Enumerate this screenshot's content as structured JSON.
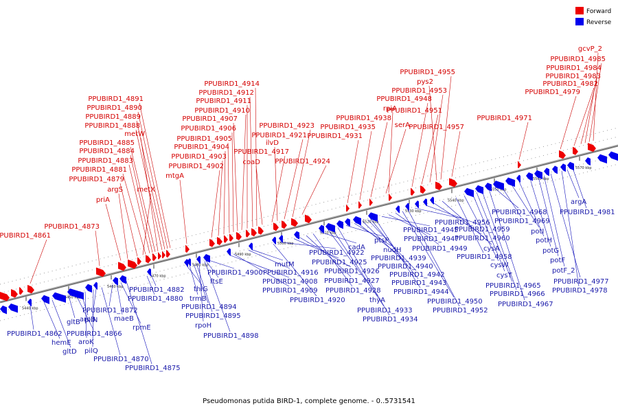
{
  "caption": "Pseudomonas putida BIRD-1, complete genome. - 0..5731541",
  "legend": [
    {
      "label": "Forward",
      "color": "#ee0000"
    },
    {
      "label": "Reverse",
      "color": "#0000ee"
    }
  ],
  "colors": {
    "forward": "#ee0000",
    "reverse": "#0000ee",
    "backbone": "#888888"
  },
  "ticks": [
    "5440 kbp",
    "5450 kbp",
    "5460 kbp",
    "5470 kbp",
    "5480 kbp",
    "5490 kbp",
    "5500 kbp",
    "5510 kbp",
    "5520 kbp",
    "5530 kbp",
    "5540 kbp",
    "5550 kbp",
    "5560 kbp",
    "5570 kbp",
    "5580 kbp"
  ],
  "forward_labels": [
    "PPUBIRD1_4861",
    "PPUBIRD1_4873",
    "priA",
    "argS",
    "PPUBIRD1_4879",
    "metX",
    "PPUBIRD1_4881",
    "PPUBIRD1_4883",
    "PPUBIRD1_4884",
    "PPUBIRD1_4885",
    "metW",
    "PPUBIRD1_4888",
    "PPUBIRD1_4889",
    "PPUBIRD1_4890",
    "PPUBIRD1_4891",
    "mtgA",
    "PPUBIRD1_4902",
    "PPUBIRD1_4903",
    "PPUBIRD1_4904",
    "PPUBIRD1_4905",
    "PPUBIRD1_4906",
    "PPUBIRD1_4907",
    "PPUBIRD1_4910",
    "PPUBIRD1_4911",
    "PPUBIRD1_4912",
    "PPUBIRD1_4914",
    "coaD",
    "PPUBIRD1_4917",
    "ilvD",
    "PPUBIRD1_4921",
    "PPUBIRD1_4923",
    "PPUBIRD1_4924",
    "PPUBIRD1_4931",
    "PPUBIRD1_4935",
    "PPUBIRD1_4938",
    "serA",
    "rpiA",
    "PPUBIRD1_4948",
    "PPUBIRD1_4951",
    "PPUBIRD1_4953",
    "pys2",
    "PPUBIRD1_4955",
    "PPUBIRD1_4957",
    "PPUBIRD1_4971",
    "PPUBIRD1_4979",
    "PPUBIRD1_4982",
    "PPUBIRD1_4983",
    "PPUBIRD1_4984",
    "PPUBIRD1_4985",
    "gcvP_2"
  ],
  "reverse_labels": [
    "PPUBIRD1_4862",
    "hemE",
    "gltD",
    "gltB",
    "PPUBIRD1_4866",
    "aroB",
    "aroK",
    "pilQ",
    "pilN",
    "PPUBIRD1_4870",
    "PPUBIRD1_4872",
    "maeB",
    "rpmE",
    "PPUBIRD1_4875",
    "PPUBIRD1_4880",
    "PPUBIRD1_4882",
    "thiG",
    "trmB",
    "PPUBIRD1_4894",
    "PPUBIRD1_4895",
    "rpoH",
    "PPUBIRD1_4898",
    "ftsE",
    "PPUBIRD1_4900",
    "PPUBIRD1_4908",
    "PPUBIRD1_4909",
    "PPUBIRD1_4916",
    "mutM",
    "PPUBIRD1_4920",
    "PPUBIRD1_4922",
    "PPUBIRD1_4925",
    "PPUBIRD1_4926",
    "PPUBIRD1_4927",
    "PPUBIRD1_4928",
    "cadA",
    "thyA",
    "PPUBIRD1_4933",
    "PPUBIRD1_4934",
    "ptsP",
    "nudH",
    "PPUBIRD1_4939",
    "PPUBIRD1_4940",
    "PPUBIRD1_4942",
    "PPUBIRD1_4943",
    "PPUBIRD1_4944",
    "PPUBIRD1_4945",
    "PPUBIRD1_4947",
    "PPUBIRD1_4949",
    "PPUBIRD1_4950",
    "PPUBIRD1_4952",
    "PPUBIRD1_4956",
    "PPUBIRD1_4959",
    "PPUBIRD1_4960",
    "cysA",
    "PPUBIRD1_4958",
    "cysW",
    "cysT",
    "PPUBIRD1_4965",
    "PPUBIRD1_4966",
    "PPUBIRD1_4967",
    "PPUBIRD1_4968",
    "PPUBIRD1_4969",
    "potI",
    "potH",
    "potG",
    "potF",
    "potF_2",
    "PPUBIRD1_4977",
    "PPUBIRD1_4978",
    "argA",
    "PPUBIRD1_4981"
  ]
}
